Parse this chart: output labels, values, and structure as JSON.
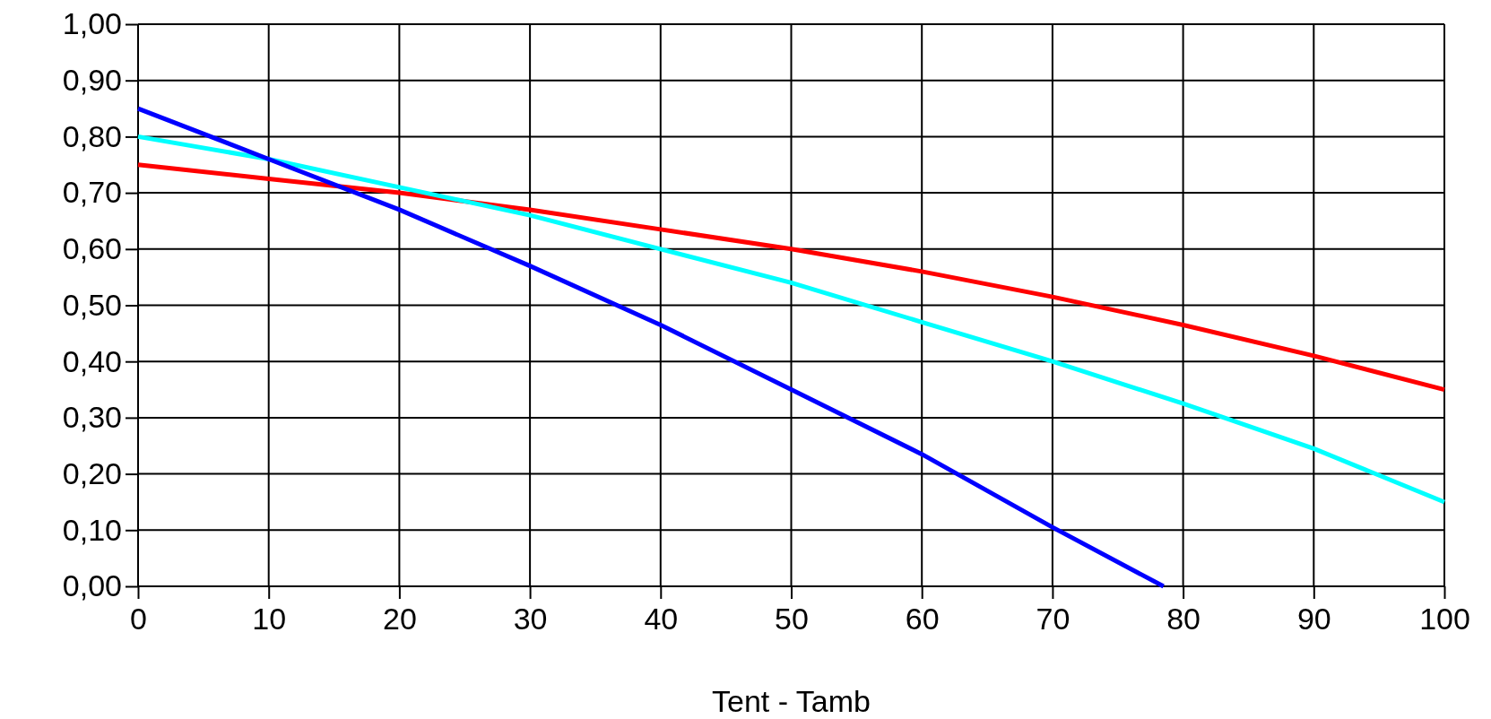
{
  "chart_data": {
    "type": "line",
    "xlabel": "Tent - Tamb",
    "xlim": [
      0,
      100
    ],
    "xticks": [
      0,
      10,
      20,
      30,
      40,
      50,
      60,
      70,
      80,
      90,
      100
    ],
    "ylim": [
      0,
      1
    ],
    "yticks": [
      {
        "value": 0,
        "label": "0,00"
      },
      {
        "value": 0.1,
        "label": "0,10"
      },
      {
        "value": 0.2,
        "label": "0,20"
      },
      {
        "value": 0.3,
        "label": "0,30"
      },
      {
        "value": 0.4,
        "label": "0,40"
      },
      {
        "value": 0.5,
        "label": "0,50"
      },
      {
        "value": 0.6,
        "label": "0,60"
      },
      {
        "value": 0.7,
        "label": "0,70"
      },
      {
        "value": 0.8,
        "label": "0,80"
      },
      {
        "value": 0.9,
        "label": "0,90"
      },
      {
        "value": 1,
        "label": "1,00"
      }
    ],
    "grid": true,
    "marker": "none",
    "line_style": "solid",
    "series": [
      {
        "color": "#ff0000",
        "x": [
          0,
          10,
          20,
          30,
          40,
          50,
          60,
          70,
          80,
          90,
          100
        ],
        "values": [
          0.75,
          0.725,
          0.7,
          0.67,
          0.635,
          0.6,
          0.56,
          0.515,
          0.465,
          0.41,
          0.35
        ]
      },
      {
        "color": "#00ffff",
        "x": [
          0,
          10,
          20,
          30,
          40,
          50,
          60,
          70,
          80,
          90,
          100
        ],
        "values": [
          0.8,
          0.76,
          0.71,
          0.66,
          0.6,
          0.54,
          0.47,
          0.4,
          0.325,
          0.245,
          0.15
        ]
      },
      {
        "color": "#0000ff",
        "x": [
          0,
          10,
          20,
          30,
          40,
          50,
          60,
          70,
          78.5
        ],
        "values": [
          0.85,
          0.76,
          0.67,
          0.57,
          0.465,
          0.35,
          0.235,
          0.105,
          0
        ]
      }
    ]
  }
}
